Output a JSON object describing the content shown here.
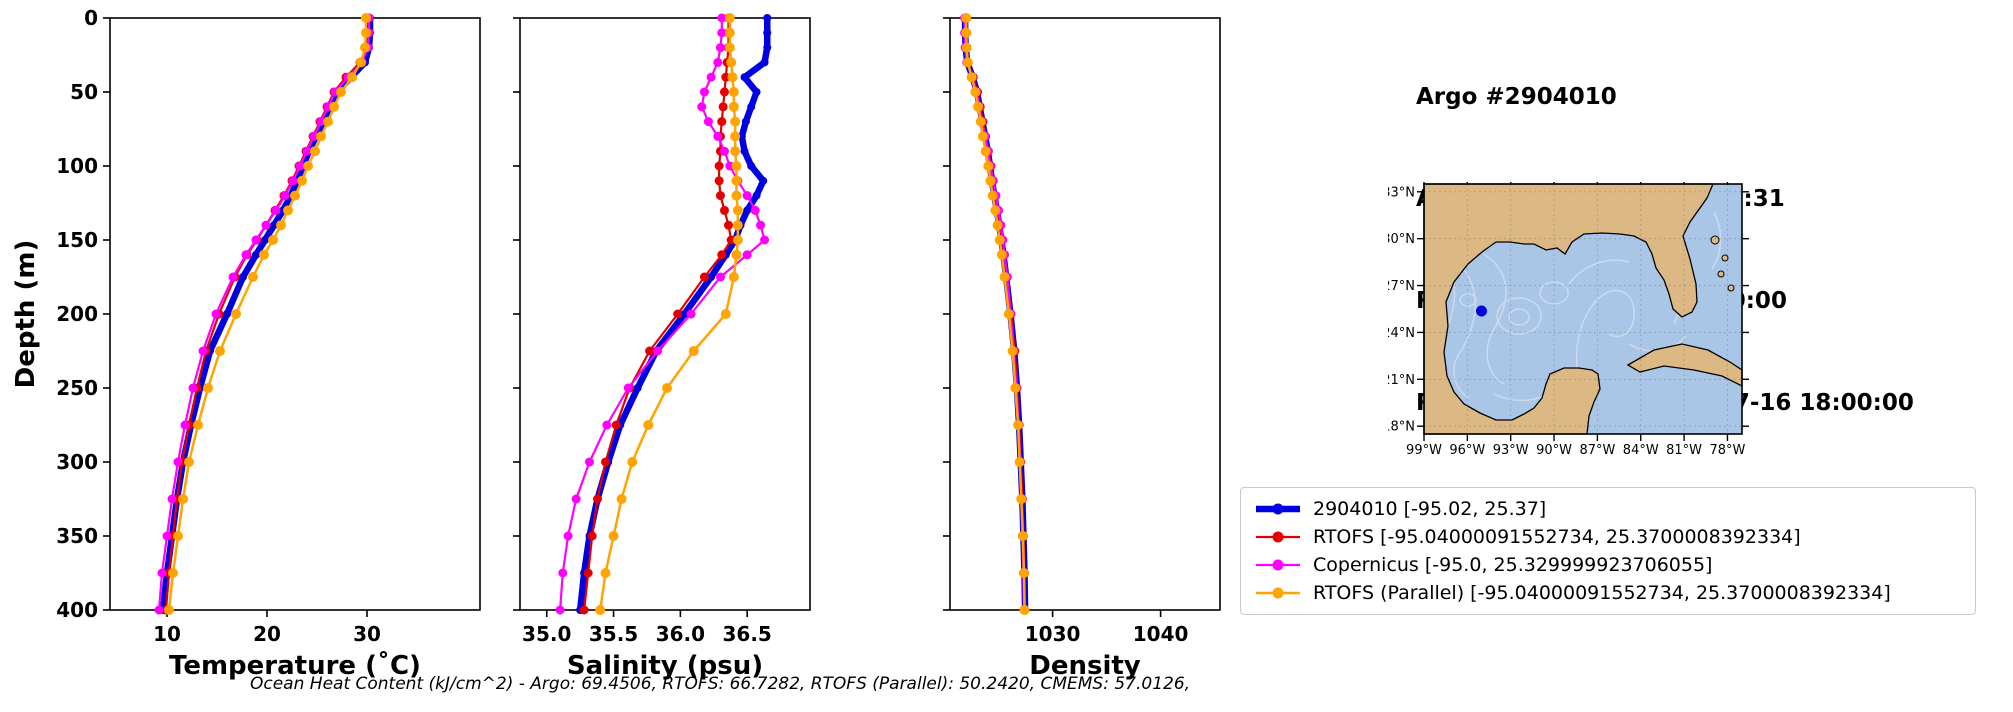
{
  "header": {
    "title": "Argo #2904010",
    "timestamps": [
      "ARGO:  2025-07-16 19:55:31",
      "RTOFS: 2025-07-16 18:00:00",
      "RTOFS (Parallel): 2025-07-16 18:00:00",
      "CMEMS: 2025-07-16 18:00:00"
    ]
  },
  "legend": {
    "items": [
      {
        "label": "2904010 [-95.02, 25.37]",
        "color": "#0000e0"
      },
      {
        "label": "RTOFS [-95.04000091552734, 25.3700008392334]",
        "color": "#e50000"
      },
      {
        "label": "Copernicus [-95.0, 25.329999923706055]",
        "color": "#ff00ff"
      },
      {
        "label": "RTOFS (Parallel) [-95.04000091552734, 25.3700008392334]",
        "color": "#ffa400"
      }
    ]
  },
  "map": {
    "x_tick_labels": [
      "99°W",
      "96°W",
      "93°W",
      "90°W",
      "87°W",
      "84°W",
      "81°W",
      "78°W"
    ],
    "y_tick_labels": [
      "33°N",
      "30°N",
      "27°N",
      "24°N",
      "21°N",
      "18°N"
    ],
    "marker": {
      "lon": -95.02,
      "lat": 25.37,
      "color": "#0000e0"
    },
    "land_color": "#dbb884",
    "sea_color": "#a9c6e6"
  },
  "footer": {
    "ohc_text": "Ocean Heat Content (kJ/cm^2) - Argo: 69.4506,  RTOFS: 66.7282,  RTOFS (Parallel): 50.2420,  CMEMS: 57.0126,"
  },
  "chart_data": [
    {
      "type": "line",
      "xlabel": "Temperature (˚C)",
      "ylabel": "Depth (m)",
      "xlim": [
        4.3,
        41.3
      ],
      "ylim": [
        0,
        400
      ],
      "x_ticks": [
        10,
        20,
        30
      ],
      "x_tick_labels": [
        "10",
        "20",
        "30"
      ],
      "y_ticks": [
        0,
        50,
        100,
        150,
        200,
        250,
        300,
        350,
        400
      ],
      "legend_position": "outside-right",
      "grid": false,
      "depths": [
        0,
        10,
        20,
        30,
        40,
        50,
        60,
        70,
        80,
        90,
        100,
        110,
        120,
        130,
        140,
        150,
        160,
        175,
        200,
        225,
        250,
        275,
        300,
        325,
        350,
        375,
        400
      ],
      "series": [
        {
          "name": "2904010 (Argo)",
          "color": "#0000e0",
          "line_width": 6.5,
          "marker_r": 4,
          "values": [
            30.3,
            30.3,
            30.2,
            29.8,
            28.4,
            27.0,
            26.3,
            25.6,
            24.9,
            24.2,
            23.6,
            23.0,
            22.4,
            21.6,
            20.7,
            19.8,
            18.9,
            17.6,
            16.0,
            14.3,
            13.3,
            12.4,
            11.6,
            11.0,
            10.5,
            10.0,
            9.6
          ]
        },
        {
          "name": "RTOFS",
          "color": "#e50000",
          "line_width": 2.2,
          "marker_r": 4.5,
          "values": [
            30.2,
            30.2,
            30.0,
            29.3,
            27.9,
            26.7,
            26.0,
            25.3,
            24.6,
            23.9,
            23.2,
            22.5,
            21.7,
            20.8,
            19.9,
            19.0,
            18.0,
            16.8,
            15.2,
            13.9,
            13.0,
            12.2,
            11.5,
            11.0,
            10.6,
            10.2,
            9.9
          ]
        },
        {
          "name": "Copernicus",
          "color": "#ff00ff",
          "line_width": 2.2,
          "marker_r": 4.5,
          "values": [
            30.2,
            30.2,
            30.1,
            29.5,
            28.1,
            26.8,
            26.1,
            25.4,
            24.7,
            24.0,
            23.3,
            22.6,
            21.8,
            20.9,
            19.9,
            18.9,
            17.9,
            16.6,
            14.9,
            13.6,
            12.6,
            11.8,
            11.1,
            10.5,
            10.0,
            9.5,
            9.2
          ]
        },
        {
          "name": "RTOFS (Parallel)",
          "color": "#ffa400",
          "line_width": 2.5,
          "marker_r": 5,
          "values": [
            29.9,
            29.9,
            29.8,
            29.4,
            28.5,
            27.4,
            26.7,
            26.1,
            25.4,
            24.8,
            24.1,
            23.5,
            22.8,
            22.1,
            21.4,
            20.6,
            19.7,
            18.6,
            16.9,
            15.3,
            14.1,
            13.1,
            12.2,
            11.6,
            11.1,
            10.6,
            10.2
          ]
        }
      ]
    },
    {
      "type": "line",
      "xlabel": "Salinity (psu)",
      "ylabel": "",
      "xlim": [
        34.8,
        36.97
      ],
      "ylim": [
        0,
        400
      ],
      "x_ticks": [
        35.0,
        35.5,
        36.0,
        36.5
      ],
      "x_tick_labels": [
        "35.0",
        "35.5",
        "36.0",
        "36.5"
      ],
      "y_ticks": [
        0,
        50,
        100,
        150,
        200,
        250,
        300,
        350,
        400
      ],
      "grid": false,
      "depths": [
        0,
        10,
        20,
        30,
        40,
        50,
        60,
        70,
        80,
        90,
        100,
        110,
        120,
        130,
        140,
        150,
        160,
        175,
        200,
        225,
        250,
        275,
        300,
        325,
        350,
        375,
        400
      ],
      "series": [
        {
          "name": "2904010 (Argo)",
          "color": "#0000e0",
          "line_width": 6.5,
          "marker_r": 4,
          "values": [
            36.65,
            36.65,
            36.65,
            36.63,
            36.48,
            36.57,
            36.53,
            36.49,
            36.46,
            36.48,
            36.53,
            36.62,
            36.57,
            36.5,
            36.45,
            36.41,
            36.34,
            36.23,
            36.03,
            35.82,
            35.68,
            35.55,
            35.46,
            35.38,
            35.32,
            35.28,
            35.25
          ]
        },
        {
          "name": "RTOFS",
          "color": "#e50000",
          "line_width": 2.2,
          "marker_r": 4.5,
          "values": [
            36.36,
            36.36,
            36.36,
            36.35,
            36.34,
            36.33,
            36.32,
            36.31,
            36.3,
            36.3,
            36.29,
            36.29,
            36.3,
            36.33,
            36.36,
            36.38,
            36.31,
            36.18,
            35.98,
            35.77,
            35.62,
            35.52,
            35.44,
            35.38,
            35.34,
            35.31,
            35.28
          ]
        },
        {
          "name": "Copernicus",
          "color": "#ff00ff",
          "line_width": 2.2,
          "marker_r": 4.5,
          "values": [
            36.31,
            36.31,
            36.3,
            36.28,
            36.23,
            36.18,
            36.16,
            36.21,
            36.28,
            36.33,
            36.37,
            36.43,
            36.5,
            36.56,
            36.6,
            36.63,
            36.5,
            36.3,
            36.08,
            35.83,
            35.61,
            35.45,
            35.32,
            35.22,
            35.16,
            35.12,
            35.1
          ]
        },
        {
          "name": "RTOFS (Parallel)",
          "color": "#ffa400",
          "line_width": 2.5,
          "marker_r": 5,
          "values": [
            36.37,
            36.37,
            36.37,
            36.38,
            36.39,
            36.4,
            36.4,
            36.41,
            36.41,
            36.41,
            36.42,
            36.42,
            36.42,
            36.43,
            36.43,
            36.43,
            36.42,
            36.4,
            36.34,
            36.1,
            35.9,
            35.76,
            35.64,
            35.56,
            35.5,
            35.44,
            35.4
          ]
        }
      ]
    },
    {
      "type": "line",
      "xlabel": "Density",
      "ylabel": "",
      "xlim": [
        1020.5,
        1045.5
      ],
      "ylim": [
        0,
        400
      ],
      "x_ticks": [
        1030,
        1040
      ],
      "x_tick_labels": [
        "1030",
        "1040"
      ],
      "y_ticks": [
        0,
        50,
        100,
        150,
        200,
        250,
        300,
        350,
        400
      ],
      "grid": false,
      "depths": [
        0,
        10,
        20,
        30,
        40,
        50,
        60,
        70,
        80,
        90,
        100,
        110,
        120,
        130,
        140,
        150,
        160,
        175,
        200,
        225,
        250,
        275,
        300,
        325,
        350,
        375,
        400
      ],
      "series": [
        {
          "name": "2904010 (Argo)",
          "color": "#0000e0",
          "line_width": 6.5,
          "marker_r": 4,
          "values": [
            1021.9,
            1021.9,
            1021.95,
            1022.1,
            1022.6,
            1023.0,
            1023.25,
            1023.5,
            1023.75,
            1024.0,
            1024.2,
            1024.4,
            1024.6,
            1024.85,
            1025.05,
            1025.25,
            1025.45,
            1025.7,
            1026.1,
            1026.45,
            1026.7,
            1026.9,
            1027.05,
            1027.2,
            1027.3,
            1027.4,
            1027.45
          ]
        },
        {
          "name": "RTOFS",
          "color": "#e50000",
          "line_width": 2.2,
          "marker_r": 4.5,
          "values": [
            1021.95,
            1021.95,
            1022.0,
            1022.15,
            1022.65,
            1023.05,
            1023.3,
            1023.55,
            1023.8,
            1024.05,
            1024.3,
            1024.5,
            1024.7,
            1024.95,
            1025.15,
            1025.35,
            1025.55,
            1025.8,
            1026.15,
            1026.5,
            1026.7,
            1026.9,
            1027.05,
            1027.2,
            1027.3,
            1027.4,
            1027.45
          ]
        },
        {
          "name": "Copernicus",
          "color": "#ff00ff",
          "line_width": 2.2,
          "marker_r": 4.5,
          "values": [
            1021.85,
            1021.85,
            1021.9,
            1022.05,
            1022.55,
            1022.95,
            1023.2,
            1023.45,
            1023.75,
            1024.0,
            1024.25,
            1024.5,
            1024.75,
            1025.0,
            1025.2,
            1025.4,
            1025.55,
            1025.8,
            1026.1,
            1026.4,
            1026.65,
            1026.85,
            1027.0,
            1027.1,
            1027.2,
            1027.3,
            1027.35
          ]
        },
        {
          "name": "RTOFS (Parallel)",
          "color": "#ffa400",
          "line_width": 2.5,
          "marker_r": 5,
          "values": [
            1022.0,
            1022.0,
            1022.05,
            1022.15,
            1022.5,
            1022.85,
            1023.1,
            1023.35,
            1023.55,
            1023.8,
            1024.05,
            1024.25,
            1024.45,
            1024.7,
            1024.9,
            1025.1,
            1025.3,
            1025.55,
            1025.95,
            1026.3,
            1026.55,
            1026.8,
            1026.95,
            1027.1,
            1027.25,
            1027.35,
            1027.4
          ]
        }
      ]
    }
  ]
}
